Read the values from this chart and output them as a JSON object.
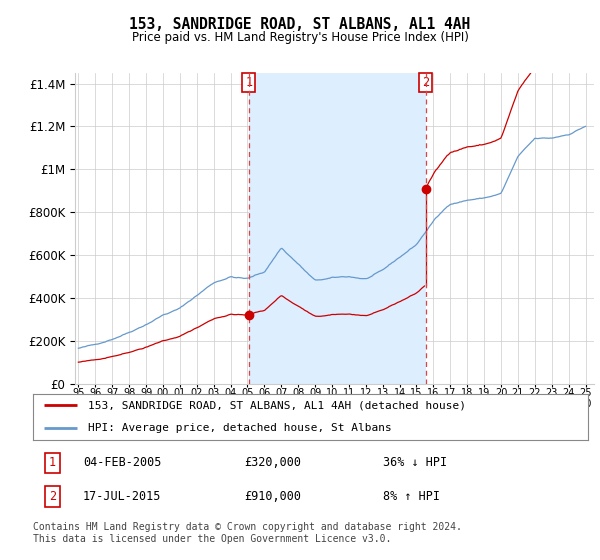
{
  "title": "153, SANDRIDGE ROAD, ST ALBANS, AL1 4AH",
  "subtitle": "Price paid vs. HM Land Registry's House Price Index (HPI)",
  "hpi_label": "HPI: Average price, detached house, St Albans",
  "price_label": "153, SANDRIDGE ROAD, ST ALBANS, AL1 4AH (detached house)",
  "footnote": "Contains HM Land Registry data © Crown copyright and database right 2024.\nThis data is licensed under the Open Government Licence v3.0.",
  "transaction1_date": "04-FEB-2005",
  "transaction1_price": "£320,000",
  "transaction1_hpi": "36% ↓ HPI",
  "transaction2_date": "17-JUL-2015",
  "transaction2_price": "£910,000",
  "transaction2_hpi": "8% ↑ HPI",
  "vline1_year": 2005.09,
  "vline2_year": 2015.54,
  "red_color": "#cc0000",
  "blue_color": "#6699cc",
  "blue_fill": "#ddeeff",
  "vline_color": "#dd4444",
  "grid_color": "#cccccc",
  "background_color": "#ffffff",
  "ylim_max": 1450000,
  "xlim_start": 1994.8,
  "xlim_end": 2025.5
}
